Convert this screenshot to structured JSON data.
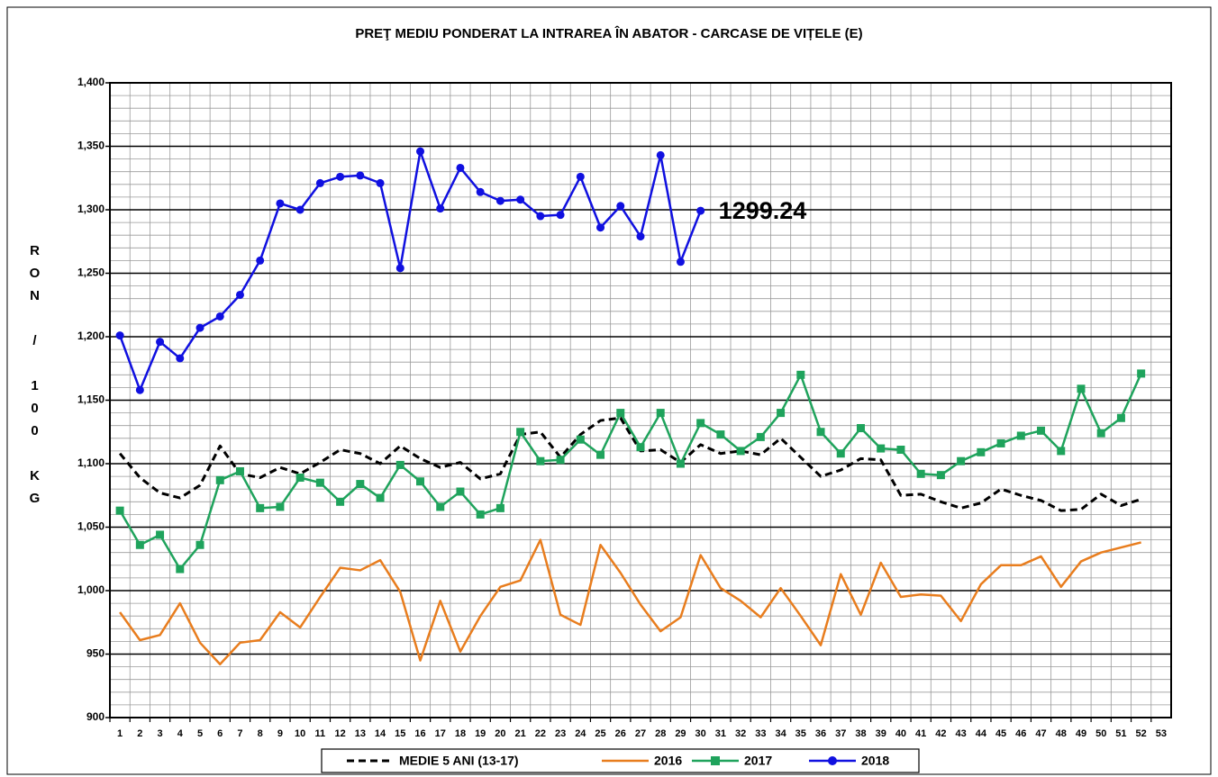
{
  "chart_data": {
    "type": "line",
    "title": "PREŢ MEDIU PONDERAT LA INTRAREA ÎN ABATOR - CARCASE DE VIȚELE (E)",
    "y_label": "RON / 100 KG",
    "categories": [
      "1",
      "2",
      "3",
      "4",
      "5",
      "6",
      "7",
      "8",
      "9",
      "10",
      "11",
      "12",
      "13",
      "14",
      "15",
      "16",
      "17",
      "18",
      "19",
      "20",
      "21",
      "22",
      "23",
      "24",
      "25",
      "26",
      "27",
      "28",
      "29",
      "30",
      "31",
      "32",
      "33",
      "34",
      "35",
      "36",
      "37",
      "38",
      "39",
      "40",
      "41",
      "42",
      "43",
      "44",
      "45",
      "46",
      "47",
      "48",
      "49",
      "50",
      "51",
      "52",
      "53"
    ],
    "ylim": [
      900,
      1400
    ],
    "yticks": [
      900,
      950,
      {
        "value": 1000,
        "label": "1,000"
      },
      {
        "value": 1050,
        "label": "1,050"
      },
      {
        "value": 1100,
        "label": "1,100"
      },
      {
        "value": 1150,
        "label": "1,150"
      },
      {
        "value": 1200,
        "label": "1,200"
      },
      {
        "value": 1250,
        "label": "1,250"
      },
      {
        "value": 1300,
        "label": "1,300"
      },
      {
        "value": 1350,
        "label": "1,350"
      },
      {
        "value": 1400,
        "label": "1,400"
      }
    ],
    "yminorticks": [
      910,
      920,
      930,
      940,
      960,
      970,
      980,
      990,
      1010,
      1020,
      1030,
      1040,
      1060,
      1070,
      1080,
      1090,
      1110,
      1120,
      1130,
      1140,
      1160,
      1170,
      1180,
      1190,
      1210,
      1220,
      1230,
      1240,
      1260,
      1270,
      1280,
      1290,
      1310,
      1320,
      1330,
      1340,
      1360,
      1370,
      1380,
      1390
    ],
    "grid": true,
    "legend": "bottom",
    "series": [
      {
        "name": "MEDIE 5 ANI (13-17)",
        "color": "#000000",
        "line_style": "dashed",
        "marker": "none",
        "values": [
          1108,
          1089,
          1077,
          1073,
          1083,
          1114,
          1092,
          1089,
          1097,
          1092,
          1101,
          1111,
          1108,
          1100,
          1114,
          1104,
          1097,
          1101,
          1088,
          1092,
          1123,
          1125,
          1105,
          1123,
          1134,
          1136,
          1110,
          1111,
          1101,
          1115,
          1108,
          1110,
          1107,
          1120,
          1105,
          1090,
          1095,
          1104,
          1103,
          1075,
          1076,
          1070,
          1065,
          1069,
          1080,
          1075,
          1071,
          1063,
          1064,
          1076,
          1067,
          1072,
          null
        ]
      },
      {
        "name": "2016",
        "color": "#e87d1e",
        "line_style": "solid",
        "marker": "none",
        "values": [
          983,
          961,
          965,
          990,
          959,
          942,
          959,
          961,
          983,
          971,
          995,
          1018,
          1016,
          1024,
          999,
          945,
          992,
          952,
          980,
          1003,
          1008,
          1040,
          981,
          973,
          1036,
          1014,
          989,
          968,
          979,
          1028,
          1002,
          992,
          979,
          1002,
          980,
          957,
          1013,
          981,
          1022,
          995,
          997,
          996,
          976,
          1005,
          1020,
          1020,
          1027,
          1003,
          1023,
          1030,
          1034,
          1038,
          null
        ]
      },
      {
        "name": "2017",
        "color": "#1fa35c",
        "line_style": "solid",
        "marker": "square",
        "values": [
          1063,
          1036,
          1044,
          1017,
          1036,
          1087,
          1094,
          1065,
          1066,
          1089,
          1085,
          1070,
          1084,
          1073,
          1099,
          1086,
          1066,
          1078,
          1060,
          1065,
          1125,
          1102,
          1103,
          1119,
          1107,
          1140,
          1113,
          1140,
          1100,
          1132,
          1123,
          1110,
          1121,
          1140,
          1170,
          1125,
          1108,
          1128,
          1112,
          1111,
          1092,
          1091,
          1102,
          1109,
          1116,
          1122,
          1126,
          1110,
          1159,
          1124,
          1136,
          1171,
          null
        ]
      },
      {
        "name": "2018",
        "color": "#1010e0",
        "line_style": "solid",
        "marker": "circle",
        "values": [
          1201,
          1158,
          1196,
          1183,
          1207,
          1216,
          1233,
          1260,
          1305,
          1300,
          1321,
          1326,
          1327,
          1321,
          1254,
          1346,
          1301,
          1333,
          1314,
          1307,
          1308,
          1295,
          1296,
          1326,
          1286,
          1303,
          1279,
          1343,
          1259,
          1299.24,
          null,
          null,
          null,
          null,
          null,
          null,
          null,
          null,
          null,
          null,
          null,
          null,
          null,
          null,
          null,
          null,
          null,
          null,
          null,
          null,
          null,
          null,
          null
        ],
        "value_labels": [
          null,
          null,
          null,
          null,
          null,
          null,
          null,
          null,
          null,
          null,
          null,
          null,
          null,
          null,
          null,
          null,
          null,
          null,
          null,
          null,
          null,
          null,
          null,
          null,
          null,
          null,
          null,
          null,
          null,
          "1299.24",
          null,
          null,
          null,
          null,
          null,
          null,
          null,
          null,
          null,
          null,
          null,
          null,
          null,
          null,
          null,
          null,
          null,
          null,
          null,
          null,
          null,
          null,
          null
        ]
      }
    ]
  }
}
